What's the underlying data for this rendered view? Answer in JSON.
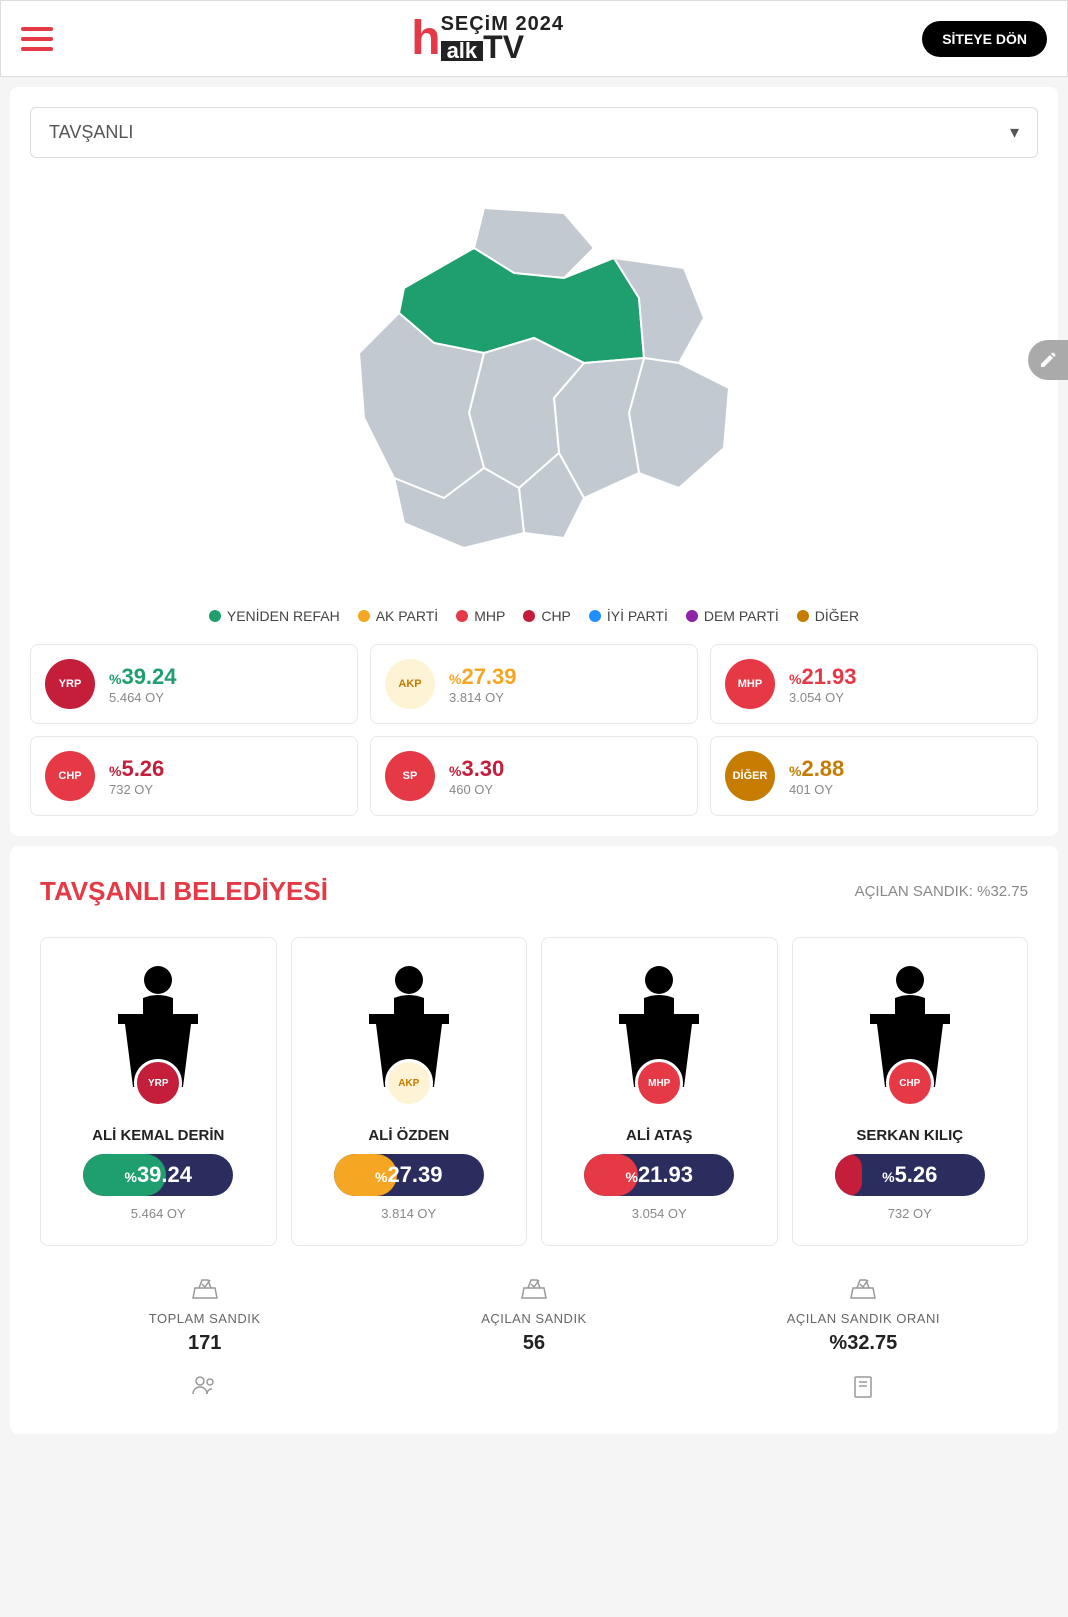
{
  "header": {
    "secim_label": "SEÇiM 2024",
    "alk_label": "alk",
    "tv_label": "TV",
    "back_button": "SİTEYE DÖN"
  },
  "dropdown": {
    "selected": "TAVŞANLI"
  },
  "map": {
    "fill_default": "#c2c9d1",
    "fill_win": "#1f9e6e",
    "stroke": "#ffffff"
  },
  "legend": [
    {
      "label": "YENİDEN REFAH",
      "color": "#1f9e6e"
    },
    {
      "label": "AK PARTİ",
      "color": "#f5a623"
    },
    {
      "label": "MHP",
      "color": "#e63946"
    },
    {
      "label": "CHP",
      "color": "#c41e3a"
    },
    {
      "label": "İYİ PARTİ",
      "color": "#1e90ff"
    },
    {
      "label": "DEM PARTİ",
      "color": "#8e24aa"
    },
    {
      "label": "DİĞER",
      "color": "#c67c00"
    }
  ],
  "parties": [
    {
      "pct": "39.24",
      "votes": "5.464 OY",
      "color": "#1f9e6e",
      "logo_bg": "#c41e3a",
      "logo_text": "YRP"
    },
    {
      "pct": "27.39",
      "votes": "3.814 OY",
      "color": "#f5a623",
      "logo_bg": "#fff3d6",
      "logo_text": "AKP"
    },
    {
      "pct": "21.93",
      "votes": "3.054 OY",
      "color": "#e63946",
      "logo_bg": "#e63946",
      "logo_text": "MHP"
    },
    {
      "pct": "5.26",
      "votes": "732 OY",
      "color": "#c41e3a",
      "logo_bg": "#e63946",
      "logo_text": "CHP"
    },
    {
      "pct": "3.30",
      "votes": "460 OY",
      "color": "#c41e3a",
      "logo_bg": "#e63946",
      "logo_text": "SP"
    },
    {
      "pct": "2.88",
      "votes": "401 OY",
      "color": "#c67c00",
      "logo_bg": "#c67c00",
      "logo_text": "DİĞER"
    }
  ],
  "municipality": {
    "title": "TAVŞANLI BELEDİYESİ",
    "opened_label": "AÇILAN SANDIK: %32.75"
  },
  "candidates": [
    {
      "name": "ALİ KEMAL DERİN",
      "pct": "39.24",
      "votes": "5.464 OY",
      "fill_color": "#1f9e6e",
      "fill_width": 55,
      "party_bg": "#c41e3a",
      "party_code": "YRP"
    },
    {
      "name": "ALİ ÖZDEN",
      "pct": "27.39",
      "votes": "3.814 OY",
      "fill_color": "#f5a623",
      "fill_width": 42,
      "party_bg": "#fff3d6",
      "party_code": "AKP"
    },
    {
      "name": "ALİ ATAŞ",
      "pct": "21.93",
      "votes": "3.054 OY",
      "fill_color": "#e63946",
      "fill_width": 36,
      "party_bg": "#e63946",
      "party_code": "MHP"
    },
    {
      "name": "SERKAN KILIÇ",
      "pct": "5.26",
      "votes": "732 OY",
      "fill_color": "#c41e3a",
      "fill_width": 18,
      "party_bg": "#e63946",
      "party_code": "CHP"
    }
  ],
  "stats": [
    {
      "label": "TOPLAM SANDIK",
      "value": "171"
    },
    {
      "label": "AÇILAN SANDIK",
      "value": "56"
    },
    {
      "label": "AÇILAN SANDIK ORANI",
      "value": "%32.75"
    }
  ]
}
